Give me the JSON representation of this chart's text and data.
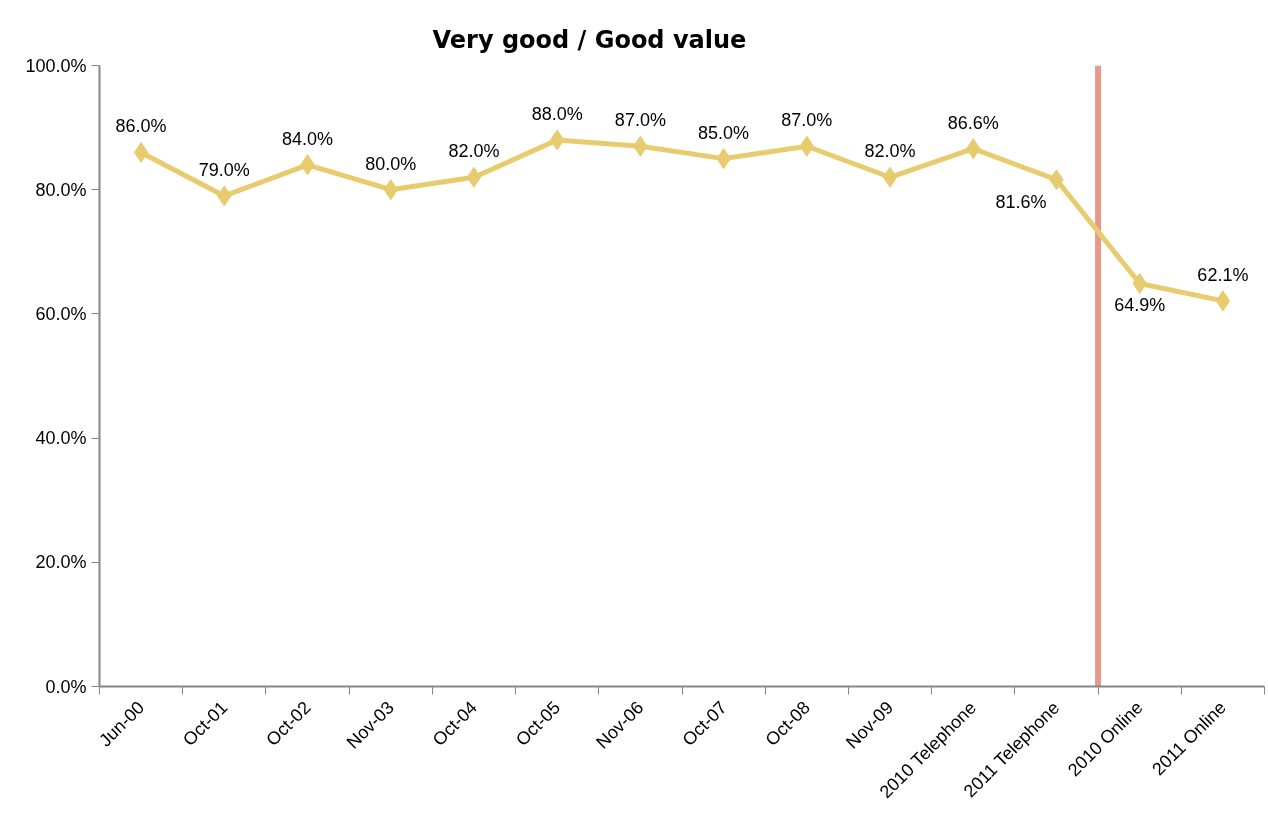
{
  "chart_data": {
    "type": "line",
    "title": "Very good / Good value",
    "categories": [
      "Jun-00",
      "Oct-01",
      "Oct-02",
      "Nov-03",
      "Oct-04",
      "Oct-05",
      "Nov-06",
      "Oct-07",
      "Oct-08",
      "Nov-09",
      "2010 Telephone",
      "2011 Telephone",
      "2010 Online",
      "2011 Online"
    ],
    "values": [
      86.0,
      79.0,
      84.0,
      80.0,
      82.0,
      88.0,
      87.0,
      85.0,
      87.0,
      82.0,
      86.6,
      81.6,
      64.9,
      62.1
    ],
    "value_labels": [
      "86.0%",
      "79.0%",
      "84.0%",
      "80.0%",
      "82.0%",
      "88.0%",
      "87.0%",
      "85.0%",
      "87.0%",
      "82.0%",
      "86.6%",
      "81.6%",
      "64.9%",
      "62.1%"
    ],
    "color": "#e8cb6e",
    "marker": "diamond",
    "line_style": "solid",
    "ylim": [
      0,
      100
    ],
    "yticks": [
      {
        "value": 0,
        "label": "0.0%"
      },
      {
        "value": 20,
        "label": "20.0%"
      },
      {
        "value": 40,
        "label": "40.0%"
      },
      {
        "value": 60,
        "label": "60.0%"
      },
      {
        "value": 80,
        "label": "80.0%"
      },
      {
        "value": 100,
        "label": "100.0%"
      }
    ],
    "ref_lines": [
      {
        "axis": "x",
        "value": "2010 Online",
        "color": "#e8998a"
      }
    ]
  }
}
